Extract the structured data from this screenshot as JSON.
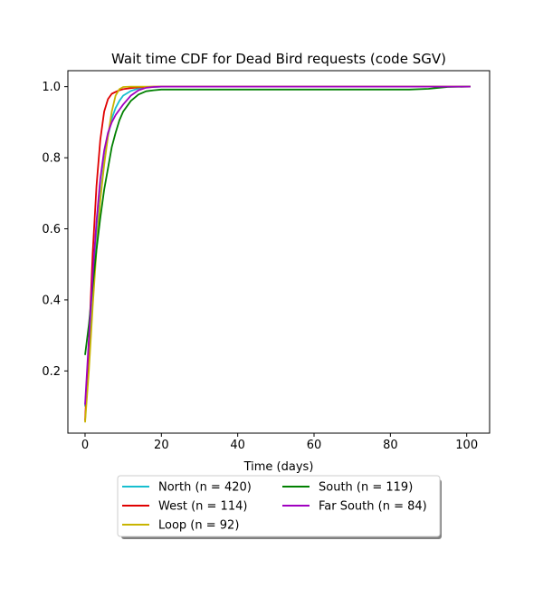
{
  "chart_data": {
    "type": "line",
    "title": "Wait time CDF for Dead Bird  requests (code SGV)",
    "xlabel": "Time (days)",
    "ylabel": "",
    "xlim": [
      -4.5,
      106
    ],
    "ylim": [
      0.025,
      1.045
    ],
    "xticks": [
      0,
      20,
      40,
      60,
      80,
      100
    ],
    "xtick_labels": [
      "0",
      "20",
      "40",
      "60",
      "80",
      "100"
    ],
    "yticks": [
      0.2,
      0.4,
      0.6,
      0.8,
      1.0
    ],
    "ytick_labels": [
      "0.2",
      "0.4",
      "0.6",
      "0.8",
      "1.0"
    ],
    "grid": false,
    "legend_position": "below-center",
    "series": [
      {
        "name": "North (n = 420)",
        "color": "#17becf",
        "x": [
          0,
          1,
          2,
          3,
          4,
          5,
          6,
          7,
          8,
          9,
          10,
          12,
          14,
          16,
          18,
          20,
          30,
          50,
          70,
          90,
          101
        ],
        "y": [
          0.1,
          0.25,
          0.42,
          0.57,
          0.69,
          0.79,
          0.86,
          0.91,
          0.94,
          0.96,
          0.975,
          0.988,
          0.995,
          0.998,
          0.999,
          1.0,
          1.0,
          1.0,
          1.0,
          1.0,
          1.0
        ]
      },
      {
        "name": "West (n = 114)",
        "color": "#e00000",
        "x": [
          0,
          1,
          2,
          3,
          4,
          5,
          6,
          7,
          8,
          9,
          10,
          12,
          14,
          16,
          18,
          20,
          30,
          50,
          70,
          90,
          101
        ],
        "y": [
          0.06,
          0.28,
          0.53,
          0.72,
          0.85,
          0.93,
          0.965,
          0.98,
          0.985,
          0.99,
          0.993,
          0.996,
          0.998,
          0.999,
          1.0,
          1.0,
          1.0,
          1.0,
          1.0,
          1.0,
          1.0
        ]
      },
      {
        "name": "Loop (n = 92)",
        "color": "#c8b400",
        "x": [
          0,
          1,
          2,
          3,
          4,
          5,
          6,
          7,
          8,
          9,
          10,
          12,
          14,
          16,
          18,
          20,
          30,
          50,
          70,
          90,
          101
        ],
        "y": [
          0.055,
          0.2,
          0.38,
          0.54,
          0.68,
          0.78,
          0.86,
          0.93,
          0.975,
          0.993,
          0.999,
          1.0,
          1.0,
          1.0,
          1.0,
          1.0,
          1.0,
          1.0,
          1.0,
          1.0,
          1.0
        ]
      },
      {
        "name": "South (n = 119)",
        "color": "#008000",
        "x": [
          0,
          1,
          2,
          3,
          4,
          5,
          6,
          7,
          8,
          9,
          10,
          12,
          14,
          16,
          18,
          20,
          30,
          50,
          70,
          85,
          90,
          95,
          101
        ],
        "y": [
          0.245,
          0.33,
          0.44,
          0.54,
          0.63,
          0.71,
          0.77,
          0.83,
          0.87,
          0.905,
          0.93,
          0.96,
          0.978,
          0.987,
          0.99,
          0.992,
          0.992,
          0.992,
          0.992,
          0.992,
          0.994,
          0.999,
          1.0
        ]
      },
      {
        "name": "Far South (n = 84)",
        "color": "#a000c0",
        "x": [
          0,
          1,
          2,
          3,
          4,
          5,
          6,
          7,
          8,
          9,
          10,
          12,
          14,
          16,
          18,
          20,
          30,
          50,
          70,
          90,
          101
        ],
        "y": [
          0.105,
          0.29,
          0.47,
          0.62,
          0.74,
          0.82,
          0.87,
          0.9,
          0.92,
          0.935,
          0.95,
          0.975,
          0.99,
          0.997,
          0.999,
          1.0,
          1.0,
          1.0,
          1.0,
          1.0,
          1.0
        ]
      }
    ]
  }
}
